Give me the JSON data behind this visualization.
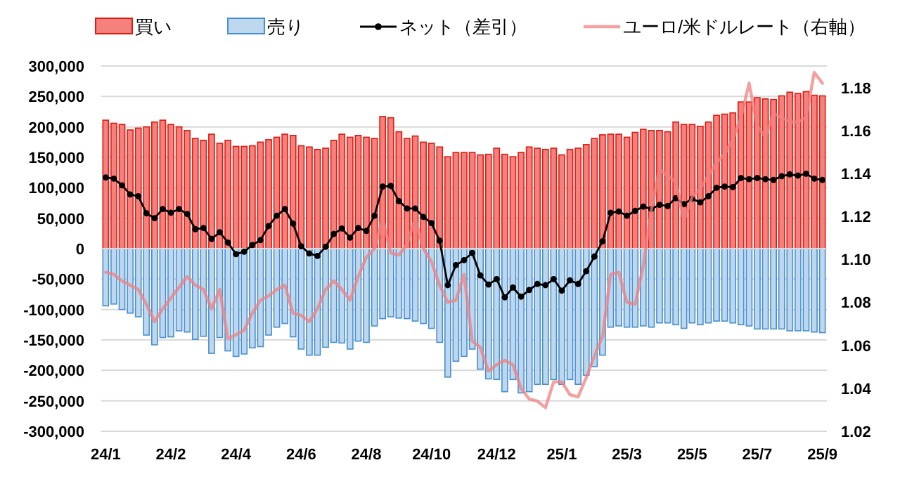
{
  "chart_data": {
    "type": "bar",
    "stacked": true,
    "legend": "top",
    "grid": "y",
    "categories": [
      "24/1",
      null,
      null,
      null,
      null,
      null,
      null,
      null,
      "24/2",
      null,
      null,
      null,
      null,
      null,
      null,
      null,
      "24/4",
      null,
      null,
      null,
      null,
      null,
      null,
      null,
      "24/6",
      null,
      null,
      null,
      null,
      null,
      null,
      null,
      "24/8",
      null,
      null,
      null,
      null,
      null,
      null,
      null,
      "24/10",
      null,
      null,
      null,
      null,
      null,
      null,
      null,
      "24/12",
      null,
      null,
      null,
      null,
      null,
      null,
      null,
      "25/1",
      null,
      null,
      null,
      null,
      null,
      null,
      null,
      "25/3",
      null,
      null,
      null,
      null,
      null,
      null,
      null,
      "25/5",
      null,
      null,
      null,
      null,
      null,
      null,
      null,
      "25/7",
      null,
      null,
      null,
      null,
      null,
      null,
      null,
      "25/9"
    ],
    "ylim": [
      -300000,
      300000
    ],
    "yticks": [
      {
        "value": -300000,
        "label": "-300,000"
      },
      {
        "value": -250000,
        "label": "-250,000"
      },
      {
        "value": -200000,
        "label": "-200,000"
      },
      {
        "value": -150000,
        "label": "-150,000"
      },
      {
        "value": -100000,
        "label": "-100,000"
      },
      {
        "value": -50000,
        "label": "-50,000"
      },
      0,
      {
        "value": 50000,
        "label": "50,000"
      },
      {
        "value": 100000,
        "label": "100,000"
      },
      {
        "value": 150000,
        "label": "150,000"
      },
      {
        "value": 200000,
        "label": "200,000"
      },
      {
        "value": 250000,
        "label": "250,000"
      },
      {
        "value": 300000,
        "label": "300,000"
      }
    ],
    "y2lim": [
      1.02,
      1.19
    ],
    "y2ticks": [
      {
        "value": 1.02,
        "label": "1.02"
      },
      {
        "value": 1.04,
        "label": "1.04"
      },
      {
        "value": 1.06,
        "label": "1.06"
      },
      {
        "value": 1.08,
        "label": "1.08"
      },
      {
        "value": 1.1,
        "label": "1.10"
      },
      {
        "value": 1.12,
        "label": "1.12"
      },
      {
        "value": 1.14,
        "label": "1.14"
      },
      {
        "value": 1.16,
        "label": "1.16"
      },
      {
        "value": 1.18,
        "label": "1.18"
      }
    ],
    "series": [
      {
        "name": "買い",
        "color": "#f4817c",
        "values": [
          211000,
          206000,
          204000,
          195000,
          198000,
          200000,
          208000,
          211000,
          204000,
          200000,
          194000,
          181000,
          178000,
          188000,
          173000,
          178000,
          168000,
          168000,
          169000,
          175000,
          179000,
          183000,
          188000,
          186000,
          169000,
          167000,
          163000,
          165000,
          178000,
          188000,
          183000,
          186000,
          183000,
          181000,
          217000,
          215000,
          192000,
          181000,
          185000,
          175000,
          173000,
          167000,
          151000,
          158000,
          158000,
          158000,
          154000,
          155000,
          165000,
          155000,
          151000,
          158000,
          167000,
          165000,
          163000,
          165000,
          154000,
          163000,
          165000,
          171000,
          181000,
          187000,
          188000,
          188000,
          183000,
          191000,
          196000,
          194000,
          194000,
          192000,
          208000,
          204000,
          204000,
          201000,
          208000,
          219000,
          221000,
          223000,
          241000,
          241000,
          248000,
          246000,
          245000,
          251000,
          257000,
          255000,
          258000,
          252000,
          251000
        ]
      },
      {
        "name": "売り",
        "color": "#bdd7ee",
        "values": [
          -94000,
          -91000,
          -100000,
          -106000,
          -112000,
          -142000,
          -158000,
          -146000,
          -145000,
          -135000,
          -137000,
          -149000,
          -144000,
          -172000,
          -146000,
          -168000,
          -177000,
          -173000,
          -163000,
          -161000,
          -142000,
          -129000,
          -123000,
          -145000,
          -165000,
          -175000,
          -175000,
          -162000,
          -154000,
          -155000,
          -165000,
          -152000,
          -154000,
          -127000,
          -115000,
          -112000,
          -114000,
          -115000,
          -119000,
          -123000,
          -131000,
          -154000,
          -211000,
          -185000,
          -177000,
          -165000,
          -198000,
          -214000,
          -215000,
          -235000,
          -215000,
          -237000,
          -235000,
          -223000,
          -223000,
          -215000,
          -223000,
          -215000,
          -223000,
          -208000,
          -194000,
          -175000,
          -129000,
          -127000,
          -129000,
          -129000,
          -127000,
          -129000,
          -122000,
          -122000,
          -125000,
          -131000,
          -122000,
          -125000,
          -122000,
          -119000,
          -119000,
          -122000,
          -125000,
          -127000,
          -132000,
          -132000,
          -132000,
          -132000,
          -135000,
          -135000,
          -135000,
          -137000,
          -138000
        ]
      },
      {
        "name": "ネット（差引）",
        "type": "line",
        "color": "#000000",
        "marker": "circle",
        "values": [
          117000,
          115000,
          104000,
          89000,
          86000,
          58000,
          50000,
          65000,
          59000,
          65000,
          57000,
          32000,
          34000,
          16000,
          27000,
          10000,
          -9000,
          -5000,
          6000,
          14000,
          37000,
          54000,
          65000,
          41000,
          4000,
          -8000,
          -12000,
          3000,
          24000,
          33000,
          18000,
          34000,
          29000,
          54000,
          102000,
          103000,
          78000,
          66000,
          66000,
          52000,
          42000,
          13000,
          -60000,
          -27000,
          -19000,
          -7000,
          -44000,
          -59000,
          -50000,
          -80000,
          -64000,
          -79000,
          -68000,
          -58000,
          -60000,
          -50000,
          -69000,
          -52000,
          -58000,
          -37000,
          -13000,
          12000,
          59000,
          61000,
          54000,
          62000,
          69000,
          65000,
          72000,
          70000,
          83000,
          73000,
          82000,
          76000,
          86000,
          100000,
          102000,
          101000,
          116000,
          114000,
          116000,
          114000,
          113000,
          119000,
          122000,
          120000,
          123000,
          115000,
          113000
        ]
      },
      {
        "name": "ユーロ/米ドルレート（右軸）",
        "type": "line",
        "axis": "y2",
        "color": "#f08080",
        "marker": "none",
        "values": [
          1.094,
          1.093,
          1.09,
          1.088,
          1.086,
          1.079,
          1.071,
          1.077,
          1.082,
          1.087,
          1.092,
          1.088,
          1.086,
          1.077,
          1.086,
          1.063,
          1.065,
          1.067,
          1.075,
          1.081,
          1.083,
          1.086,
          1.088,
          1.075,
          1.074,
          1.071,
          1.077,
          1.086,
          1.09,
          1.086,
          1.081,
          1.092,
          1.101,
          1.105,
          1.119,
          1.103,
          1.102,
          1.107,
          1.119,
          1.105,
          1.099,
          1.088,
          1.08,
          1.081,
          1.093,
          1.062,
          1.059,
          1.048,
          1.051,
          1.053,
          1.051,
          1.04,
          1.035,
          1.034,
          1.031,
          1.043,
          1.043,
          1.037,
          1.036,
          1.045,
          1.055,
          1.064,
          1.093,
          1.094,
          1.08,
          1.079,
          1.097,
          1.123,
          1.142,
          1.139,
          1.136,
          1.118,
          1.129,
          1.133,
          1.139,
          1.145,
          1.149,
          1.156,
          1.166,
          1.182,
          1.162,
          1.157,
          1.168,
          1.166,
          1.164,
          1.164,
          1.166,
          1.187,
          1.182
        ]
      }
    ]
  }
}
